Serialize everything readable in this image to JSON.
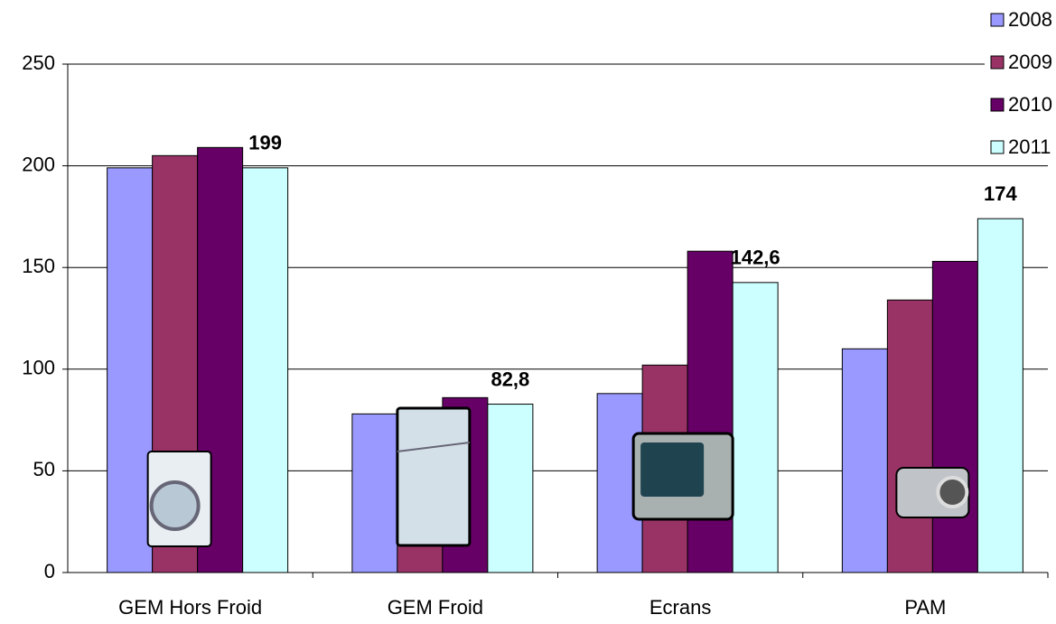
{
  "chart_data": {
    "type": "bar",
    "categories": [
      "GEM Hors Froid",
      "GEM Froid",
      "Ecrans",
      "PAM"
    ],
    "series": [
      {
        "name": "2008",
        "color": "#9999ff",
        "values": [
          199,
          78,
          88,
          110
        ]
      },
      {
        "name": "2009",
        "color": "#993366",
        "values": [
          205,
          80,
          102,
          134
        ]
      },
      {
        "name": "2010",
        "color": "#660066",
        "values": [
          209,
          86,
          158,
          153
        ]
      },
      {
        "name": "2011",
        "color": "#ccffff",
        "values": [
          199,
          82.8,
          142.6,
          174
        ],
        "value_labels": [
          "199",
          "82,8",
          "142,6",
          "174"
        ]
      }
    ],
    "ylim": [
      0,
      250
    ],
    "yticks": [
      0,
      50,
      100,
      150,
      200,
      250
    ],
    "grid": true,
    "legend": "top-right"
  }
}
